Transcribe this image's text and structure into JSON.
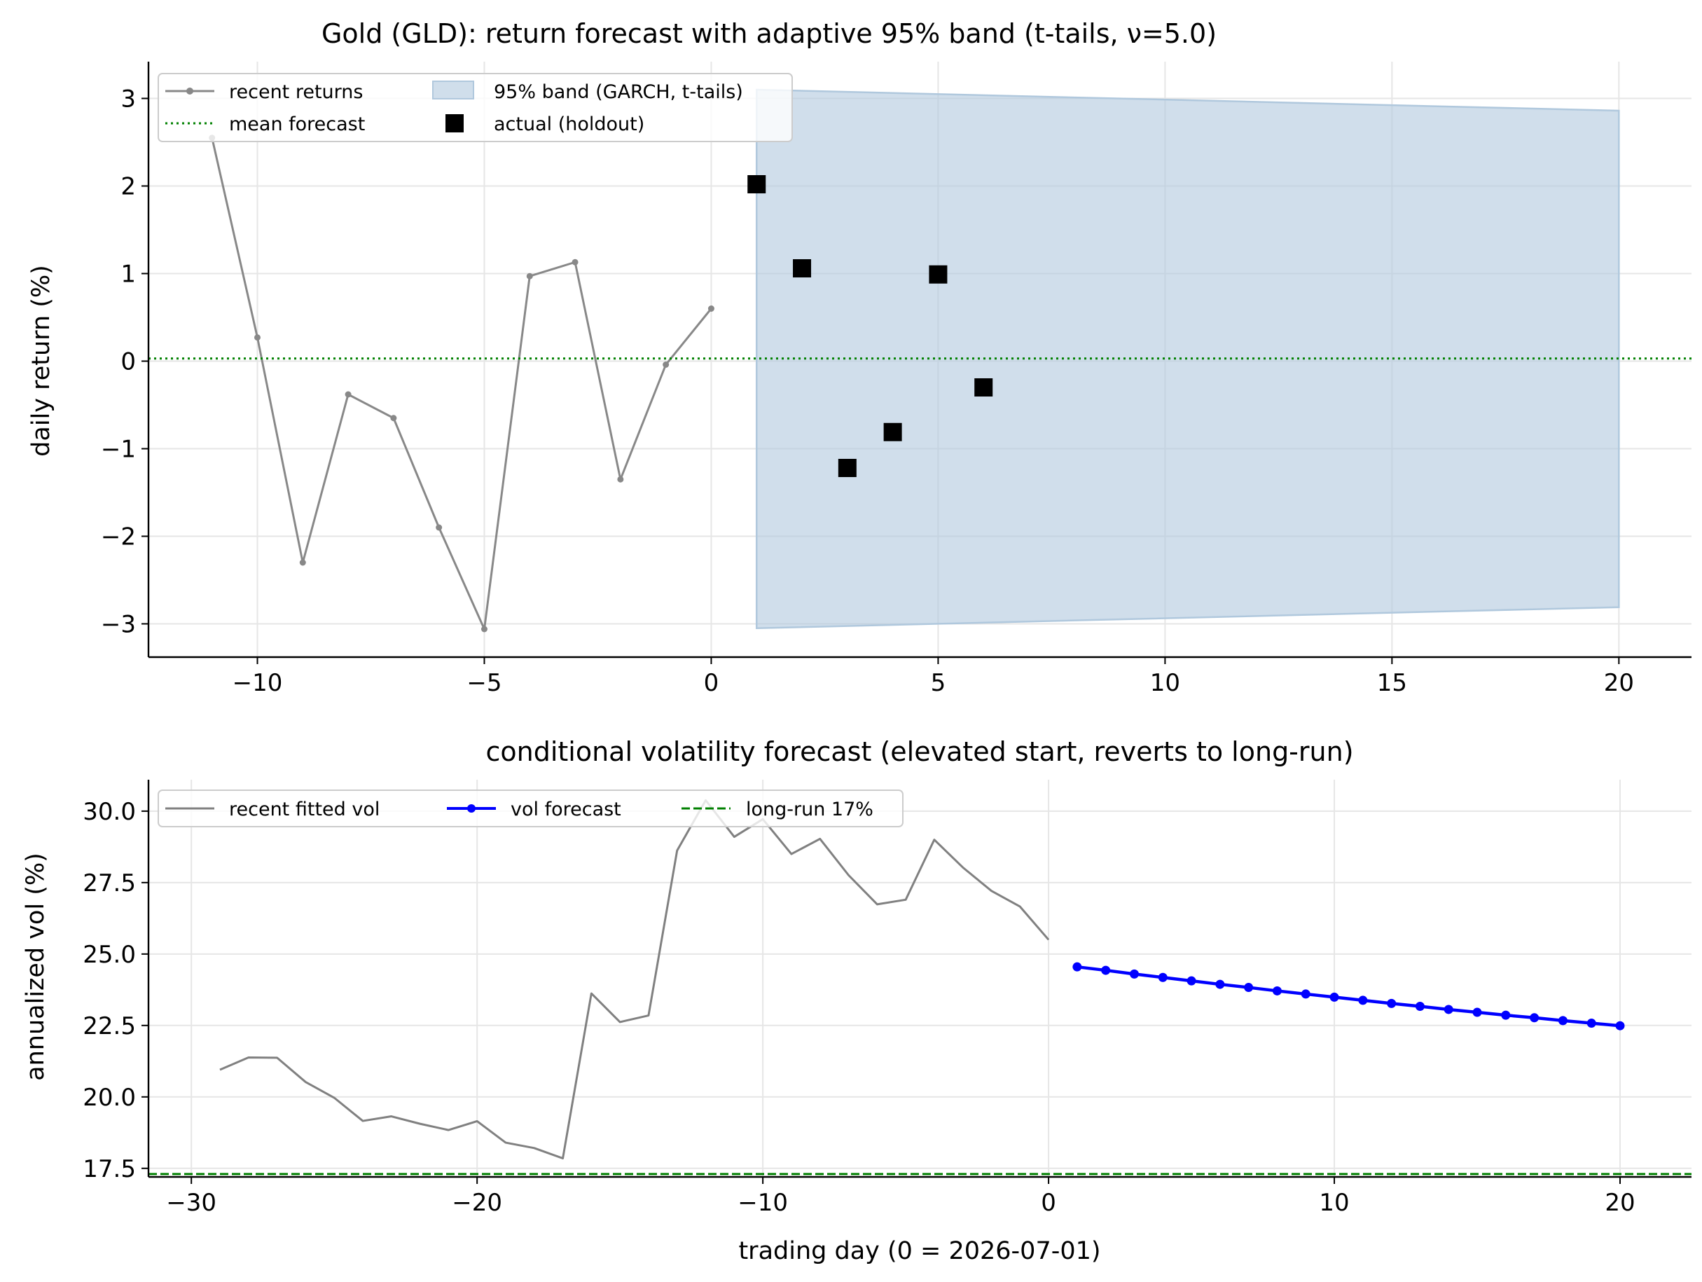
{
  "chart_data": [
    {
      "type": "line",
      "title": "Gold (GLD): return forecast with adaptive 95% band (t-tails, ν=5.0)",
      "xlabel": "",
      "ylabel": "daily return (%)",
      "xlim": [
        -12.4,
        21.6
      ],
      "ylim": [
        -3.38,
        3.42
      ],
      "xticks": [
        -10,
        -5,
        0,
        5,
        10,
        15,
        20
      ],
      "xtick_labels": [
        "−10",
        "−5",
        "0",
        "5",
        "10",
        "15",
        "20"
      ],
      "yticks": [
        -3,
        -2,
        -1,
        0,
        1,
        2,
        3
      ],
      "ytick_labels": [
        "−3",
        "−2",
        "−1",
        "0",
        "1",
        "2",
        "3"
      ],
      "grid": true,
      "legend_position": "top-left",
      "legend": [
        "recent returns",
        "95% band (GARCH, t-tails)",
        "mean forecast",
        "actual (holdout)"
      ],
      "series": [
        {
          "name": "recent returns",
          "kind": "line-markers",
          "color": "#888888",
          "x": [
            -11,
            -10,
            -9,
            -8,
            -7,
            -6,
            -5,
            -4,
            -3,
            -2,
            -1,
            0
          ],
          "y": [
            2.55,
            0.27,
            -2.3,
            -0.38,
            -0.65,
            -1.9,
            -3.06,
            0.97,
            1.13,
            -1.35,
            -0.04,
            0.6
          ]
        },
        {
          "name": "95% band (GARCH, t-tails)",
          "kind": "band",
          "color": "#b0c8dd",
          "x": [
            1,
            20
          ],
          "upper": [
            3.1,
            2.86
          ],
          "lower": [
            -3.05,
            -2.81
          ]
        },
        {
          "name": "mean forecast",
          "kind": "hline",
          "color": "#008000",
          "y": 0.03
        },
        {
          "name": "actual (holdout)",
          "kind": "markers",
          "color": "#000000",
          "x": [
            1,
            2,
            3,
            4,
            5,
            6
          ],
          "y": [
            2.02,
            1.06,
            -1.22,
            -0.81,
            0.99,
            -0.3
          ]
        }
      ]
    },
    {
      "type": "line",
      "title": "conditional volatility forecast (elevated start, reverts to long-run)",
      "xlabel": "trading day (0 = 2026-07-01)",
      "ylabel": "annualized vol (%)",
      "xlim": [
        -31.5,
        22.5
      ],
      "ylim": [
        17.2,
        31.1
      ],
      "xticks": [
        -30,
        -20,
        -10,
        0,
        10,
        20
      ],
      "xtick_labels": [
        "−30",
        "−20",
        "−10",
        "0",
        "10",
        "20"
      ],
      "yticks": [
        17.5,
        20.0,
        22.5,
        25.0,
        27.5,
        30.0
      ],
      "ytick_labels": [
        "17.5",
        "20.0",
        "22.5",
        "25.0",
        "27.5",
        "30.0"
      ],
      "grid": true,
      "legend_position": "top-left",
      "legend": [
        "recent fitted vol",
        "vol forecast",
        "long-run 17%"
      ],
      "series": [
        {
          "name": "recent fitted vol",
          "kind": "line",
          "color": "#808080",
          "x": [
            -29,
            -28,
            -27,
            -26,
            -25,
            -24,
            -23,
            -22,
            -21,
            -20,
            -19,
            -18,
            -17,
            -16,
            -15,
            -14,
            -13,
            -12,
            -11,
            -10,
            -9,
            -8,
            -7,
            -6,
            -5,
            -4,
            -3,
            -2,
            -1,
            0
          ],
          "y": [
            20.95,
            21.38,
            21.37,
            20.52,
            19.97,
            19.16,
            19.32,
            19.06,
            18.84,
            19.15,
            18.4,
            18.21,
            17.85,
            23.62,
            22.62,
            22.85,
            28.62,
            30.38,
            29.1,
            29.72,
            28.5,
            29.03,
            27.76,
            26.74,
            26.9,
            29.0,
            28.03,
            27.21,
            26.66,
            25.5
          ]
        },
        {
          "name": "vol forecast",
          "kind": "line-markers",
          "color": "#0000ff",
          "x": [
            1,
            2,
            3,
            4,
            5,
            6,
            7,
            8,
            9,
            10,
            11,
            12,
            13,
            14,
            15,
            16,
            17,
            18,
            19,
            20
          ],
          "y": [
            24.55,
            24.43,
            24.3,
            24.18,
            24.06,
            23.94,
            23.83,
            23.71,
            23.6,
            23.49,
            23.38,
            23.27,
            23.17,
            23.06,
            22.96,
            22.86,
            22.77,
            22.67,
            22.58,
            22.49
          ]
        },
        {
          "name": "long-run 17%",
          "kind": "hline",
          "color": "#008000",
          "y": 17.3
        }
      ]
    }
  ]
}
